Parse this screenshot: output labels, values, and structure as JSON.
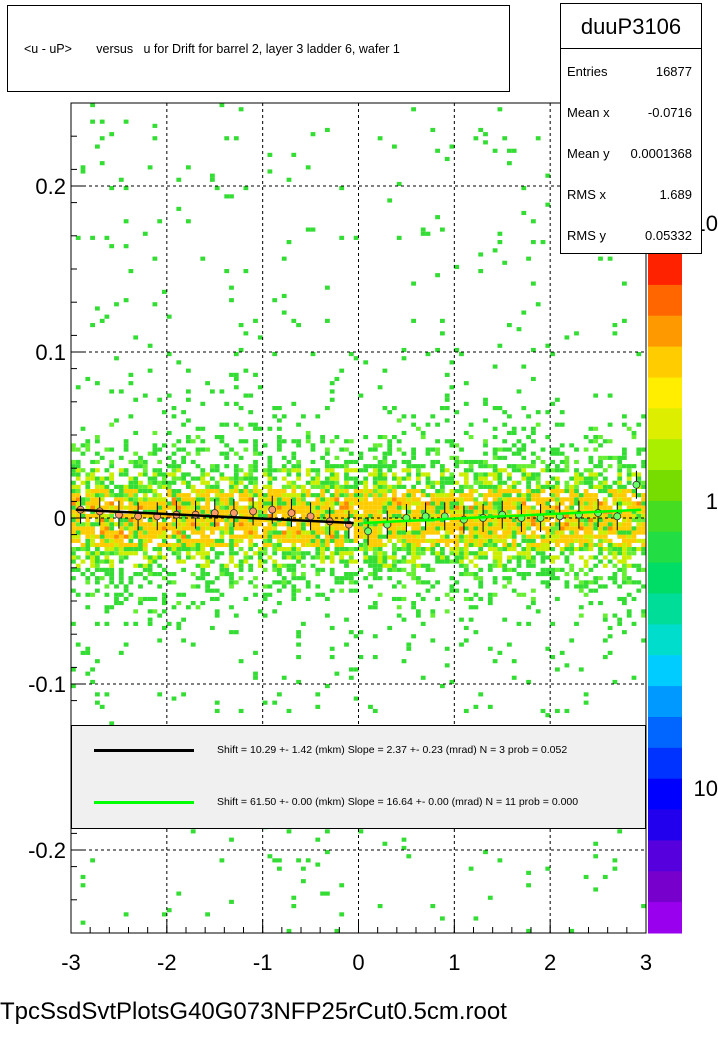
{
  "title": "<u - uP>       versus   u for Drift for barrel 2, layer 3 ladder 6, wafer 1",
  "stats": {
    "name": "duuP3106",
    "rows": [
      {
        "label": "Entries",
        "value": "16877"
      },
      {
        "label": "Mean x",
        "value": "-0.0716"
      },
      {
        "label": "Mean y",
        "value": "0.0001368"
      },
      {
        "label": "RMS x",
        "value": "1.689"
      },
      {
        "label": "RMS y",
        "value": "0.05332"
      }
    ]
  },
  "fits": [
    {
      "color": "#000000",
      "text": "Shift =    10.29 +- 1.42 (mkm) Slope =     2.37 +- 0.23 (mrad)  N = 3 prob = 0.052"
    },
    {
      "color": "#00ff00",
      "text": "Shift =    61.50 +- 0.00 (mkm) Slope =    16.64 +- 0.00 (mrad)  N = 11 prob = 0.000"
    }
  ],
  "palette_labels": [
    "10",
    "1",
    "10"
  ],
  "footer": "TpcSsdSvtPlotsG40G073NFP25rCut0.5cm.root",
  "chart_data": {
    "type": "heatmap",
    "xlim": [
      -3,
      3
    ],
    "ylim": [
      -0.25,
      0.25
    ],
    "x_ticks": [
      -3,
      -2,
      -1,
      0,
      1,
      2,
      3
    ],
    "y_ticks": [
      -0.2,
      -0.1,
      0,
      0.1,
      0.2
    ],
    "y_tick_labels": [
      "-0.2",
      "-0.1",
      "0",
      "0.1",
      "0.2"
    ],
    "grid": true,
    "log_z": true,
    "profile": {
      "x": [
        -2.9,
        -2.7,
        -2.5,
        -2.3,
        -2.1,
        -1.9,
        -1.7,
        -1.5,
        -1.3,
        -1.1,
        -0.9,
        -0.7,
        -0.5,
        -0.3,
        -0.1,
        0.1,
        0.3,
        0.5,
        0.7,
        0.9,
        1.1,
        1.3,
        1.5,
        1.7,
        1.9,
        2.1,
        2.3,
        2.5,
        2.7,
        2.9
      ],
      "y": [
        0.005,
        0.004,
        0.002,
        0.001,
        0.001,
        0.002,
        0.002,
        0.003,
        0.003,
        0.004,
        0.005,
        0.003,
        0.001,
        -0.002,
        -0.004,
        -0.008,
        -0.004,
        0.0,
        0.001,
        0.001,
        -0.001,
        0.0,
        0.002,
        0.0,
        0.0,
        0.001,
        0.002,
        0.003,
        0.001,
        0.02
      ]
    },
    "fit_black": {
      "x": [
        -2.95,
        -0.05
      ],
      "y_start": 0.005,
      "y_end": -0.003
    },
    "fit_green": {
      "x": [
        0.05,
        2.95
      ],
      "y_start": -0.003,
      "y_end": 0.005
    }
  }
}
